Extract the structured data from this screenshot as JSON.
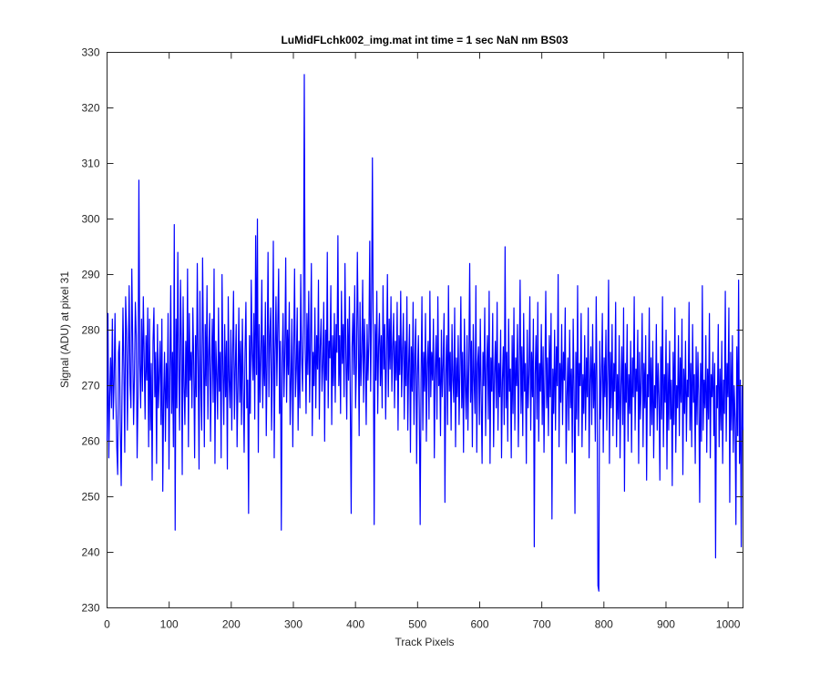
{
  "chart_data": {
    "type": "line",
    "title": "LuMidFLchk002_img.mat int time = 1 sec  NaN nm BS03",
    "xlabel": "Track Pixels",
    "ylabel": "Signal (ADU) at pixel 31",
    "xlim": [
      0,
      1024
    ],
    "ylim": [
      230,
      330
    ],
    "xticks": [
      0,
      100,
      200,
      300,
      400,
      500,
      600,
      700,
      800,
      900,
      1000
    ],
    "yticks": [
      230,
      240,
      250,
      260,
      270,
      280,
      290,
      300,
      310,
      320,
      330
    ],
    "grid": false,
    "line_color": "#0000ff",
    "series": [
      {
        "values": [
          260,
          283,
          257,
          268,
          275,
          266,
          282,
          264,
          271,
          283,
          268,
          259,
          254,
          276,
          278,
          262,
          252,
          270,
          284,
          273,
          258,
          286,
          280,
          262,
          275,
          288,
          270,
          266,
          291,
          278,
          263,
          272,
          285,
          279,
          257,
          268,
          307,
          274,
          266,
          282,
          269,
          286,
          275,
          264,
          279,
          271,
          284,
          259,
          282,
          262,
          274,
          253,
          278,
          284,
          268,
          276,
          256,
          281,
          266,
          272,
          278,
          263,
          282,
          251,
          268,
          276,
          260,
          274,
          266,
          283,
          255,
          272,
          288,
          265,
          276,
          259,
          299,
          244,
          282,
          266,
          294,
          273,
          262,
          289,
          278,
          254,
          286,
          270,
          263,
          278,
          268,
          291,
          259,
          283,
          271,
          276,
          266,
          284,
          274,
          257,
          279,
          268,
          292,
          274,
          255,
          287,
          270,
          262,
          293,
          277,
          259,
          281,
          270,
          288,
          264,
          276,
          283,
          260,
          273,
          282,
          267,
          291,
          256,
          278,
          272,
          264,
          284,
          269,
          276,
          257,
          290,
          273,
          263,
          281,
          268,
          278,
          255,
          286,
          271,
          266,
          280,
          262,
          276,
          287,
          264,
          273,
          281,
          259,
          270,
          284,
          267,
          278,
          263,
          282,
          270,
          258,
          276,
          285,
          266,
          271,
          247,
          279,
          265,
          289,
          276,
          271,
          283,
          264,
          297,
          272,
          300,
          258,
          281,
          267,
          276,
          289,
          266,
          279,
          270,
          285,
          261,
          275,
          294,
          268,
          279,
          284,
          262,
          273,
          296,
          257,
          276,
          286,
          270,
          281,
          291,
          265,
          278,
          244,
          274,
          283,
          268,
          276,
          293,
          267,
          280,
          272,
          285,
          263,
          271,
          282,
          259,
          276,
          291,
          268,
          273,
          284,
          262,
          278,
          266,
          290,
          275,
          269,
          281,
          326,
          277,
          265,
          283,
          272,
          287,
          267,
          278,
          292,
          261,
          276,
          270,
          284,
          266,
          279,
          273,
          289,
          264,
          277,
          282,
          269,
          274,
          285,
          260,
          280,
          271,
          294,
          266,
          278,
          275,
          288,
          263,
          279,
          270,
          283,
          267,
          281,
          276,
          297,
          270,
          279,
          265,
          287,
          274,
          281,
          268,
          292,
          276,
          264,
          282,
          271,
          286,
          267,
          247,
          277,
          283,
          272,
          288,
          266,
          274,
          294,
          279,
          261,
          285,
          270,
          276,
          289,
          267,
          282,
          274,
          263,
          281,
          271,
          278,
          296,
          269,
          284,
          311,
          278,
          245,
          281,
          271,
          287,
          265,
          277,
          283,
          270,
          279,
          266,
          288,
          273,
          281,
          264,
          276,
          290,
          268,
          282,
          273,
          286,
          269,
          277,
          283,
          266,
          278,
          271,
          285,
          262,
          279,
          272,
          287,
          268,
          276,
          283,
          264,
          278,
          270,
          286,
          262,
          274,
          281,
          258,
          277,
          269,
          285,
          263,
          275,
          282,
          256,
          272,
          279,
          266,
          245,
          271,
          286,
          262,
          276,
          269,
          283,
          260,
          274,
          278,
          264,
          287,
          268,
          276,
          271,
          282,
          257,
          273,
          279,
          264,
          286,
          270,
          275,
          261,
          280,
          268,
          274,
          283,
          249,
          272,
          279,
          263,
          288,
          269,
          276,
          262,
          281,
          271,
          267,
          284,
          259,
          275,
          268,
          279,
          263,
          273,
          286,
          266,
          276,
          258,
          282,
          270,
          264,
          279,
          262,
          274,
          292,
          267,
          278,
          259,
          281,
          271,
          265,
          288,
          258,
          274,
          277,
          263,
          282,
          268,
          256,
          276,
          270,
          284,
          261,
          273,
          279,
          264,
          287,
          256,
          275,
          269,
          283,
          259,
          272,
          278,
          266,
          285,
          262,
          274,
          268,
          280,
          257,
          271,
          277,
          263,
          295,
          266,
          276,
          260,
          282,
          269,
          273,
          257,
          279,
          265,
          284,
          262,
          275,
          270,
          281,
          259,
          273,
          289,
          265,
          277,
          261,
          283,
          269,
          274,
          256,
          280,
          266,
          272,
          286,
          262,
          276,
          268,
          282,
          241,
          272,
          279,
          264,
          285,
          260,
          274,
          269,
          281,
          263,
          277,
          258,
          272,
          287,
          266,
          275,
          261,
          279,
          268,
          283,
          246,
          273,
          265,
          280,
          262,
          277,
          270,
          290,
          259,
          274,
          267,
          281,
          263,
          276,
          271,
          284,
          256,
          268,
          275,
          262,
          280,
          266,
          273,
          258,
          282,
          269,
          247,
          276,
          264,
          288,
          261,
          274,
          270,
          283,
          259,
          272,
          265,
          279,
          262,
          275,
          268,
          284,
          257,
          271,
          277,
          263,
          281,
          266,
          274,
          260,
          286,
          269,
          234,
          233,
          278,
          264,
          272,
          283,
          258,
          275,
          268,
          280,
          262,
          273,
          289,
          256,
          276,
          266,
          281,
          261,
          274,
          269,
          285,
          259,
          272,
          264,
          279,
          257,
          270,
          277,
          263,
          284,
          251,
          274,
          267,
          281,
          260,
          272,
          265,
          278,
          258,
          275,
          268,
          286,
          262,
          273,
          269,
          280,
          256,
          276,
          264,
          271,
          283,
          259,
          274,
          266,
          279,
          253,
          272,
          268,
          284,
          261,
          275,
          263,
          278,
          257,
          270,
          266,
          281,
          262,
          274,
          268,
          253,
          277,
          264,
          286,
          259,
          272,
          267,
          280,
          255,
          274,
          262,
          278,
          264,
          271,
          252,
          276,
          263,
          284,
          258,
          270,
          266,
          279,
          261,
          275,
          267,
          282,
          254,
          273,
          265,
          278,
          260,
          271,
          268,
          285,
          262,
          274,
          259,
          281,
          267,
          272,
          256,
          277,
          263,
          276,
          268,
          249,
          274,
          260,
          288,
          262,
          271,
          266,
          279,
          258,
          273,
          264,
          283,
          257,
          272,
          268,
          276,
          261,
          274,
          239,
          270,
          266,
          281,
          259,
          273,
          262,
          278,
          256,
          271,
          265,
          287,
          260,
          274,
          268,
          284,
          249,
          276,
          262,
          279,
          258,
          270,
          264,
          245,
          277,
          261,
          289,
          256,
          271,
          241,
          270,
          262
        ]
      }
    ]
  }
}
